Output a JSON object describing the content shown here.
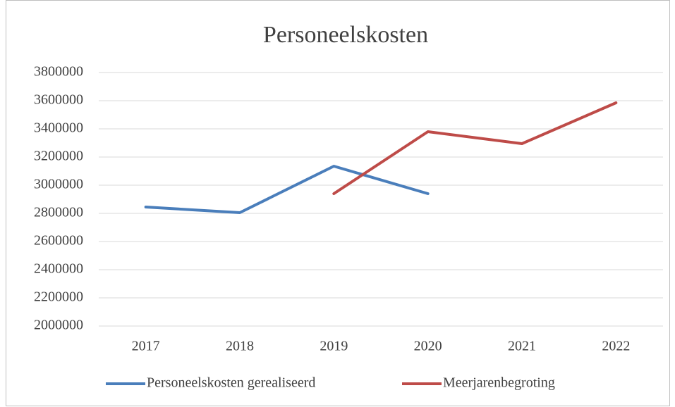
{
  "chart_data": {
    "type": "line",
    "title": "Personeelskosten",
    "categories": [
      "2017",
      "2018",
      "2019",
      "2020",
      "2021",
      "2022"
    ],
    "series": [
      {
        "name": "Personeelskosten gerealiseerd",
        "color": "#4a7ebb",
        "values": [
          2845000,
          2805000,
          3135000,
          2940000,
          null,
          null
        ]
      },
      {
        "name": "Meerjarenbegroting",
        "color": "#be4b48",
        "values": [
          null,
          null,
          2940000,
          3380000,
          3295000,
          3585000
        ]
      }
    ],
    "ylim": [
      2000000,
      3800000
    ],
    "yticks": [
      2000000,
      2200000,
      2400000,
      2600000,
      2800000,
      3000000,
      3200000,
      3400000,
      3600000,
      3800000
    ],
    "grid": true,
    "legend": "bottom"
  }
}
